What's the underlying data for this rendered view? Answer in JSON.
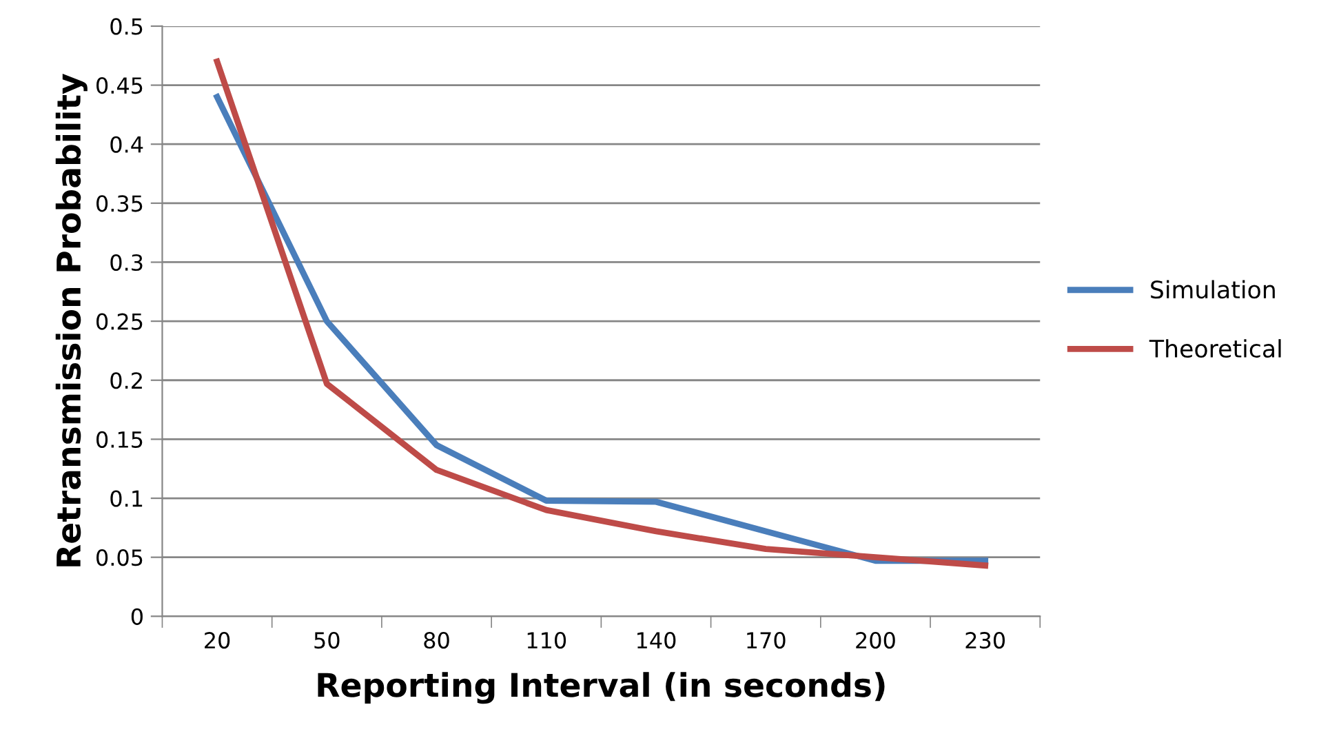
{
  "chart_data": {
    "type": "line",
    "xlabel": "Reporting Interval (in seconds)",
    "ylabel": "Retransmission Probability",
    "categories": [
      "20",
      "50",
      "80",
      "110",
      "140",
      "170",
      "200",
      "230"
    ],
    "series": [
      {
        "name": "Simulation",
        "color": "#4a7ebb",
        "values": [
          0.44,
          0.25,
          0.145,
          0.098,
          0.097,
          0.072,
          0.047,
          0.047
        ]
      },
      {
        "name": "Theoretical",
        "color": "#be4b48",
        "values": [
          0.47,
          0.197,
          0.124,
          0.09,
          0.072,
          0.057,
          0.05,
          0.043
        ]
      }
    ],
    "ylim": [
      0,
      0.5
    ],
    "yticks": [
      0,
      0.05,
      0.1,
      0.15,
      0.2,
      0.25,
      0.3,
      0.35,
      0.4,
      0.45,
      0.5
    ],
    "grid": "y",
    "legend": "right",
    "marker": "none",
    "line_style": "solid"
  }
}
